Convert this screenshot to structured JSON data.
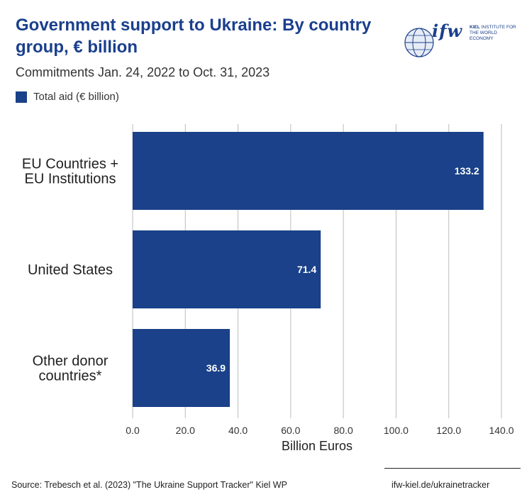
{
  "header": {
    "title": "Government support to Ukraine: By country group, € billion",
    "subtitle": "Commitments Jan. 24, 2022 to Oct. 31, 2023"
  },
  "logo": {
    "wordmark": "ifw",
    "tagline_bold": "KIEL",
    "tagline": "INSTITUTE FOR THE WORLD ECONOMY"
  },
  "colors": {
    "bar": "#1a4189",
    "grid": "#bdbdbd",
    "title": "#1a3f8c",
    "bar_label": "#ffffff"
  },
  "chart_data": {
    "type": "bar",
    "orientation": "horizontal",
    "categories": [
      [
        "EU Countries +",
        "EU Institutions"
      ],
      [
        "United States"
      ],
      [
        "Other donor",
        "countries*"
      ]
    ],
    "series": [
      {
        "name": "Total aid (€ billion)",
        "values": [
          133.2,
          71.4,
          36.9
        ],
        "value_labels": [
          "133.2",
          "71.4",
          "36.9"
        ]
      }
    ],
    "xlabel": "Billion Euros",
    "xlim": [
      0,
      140
    ],
    "xticks": [
      0,
      20,
      40,
      60,
      80,
      100,
      120,
      140
    ],
    "xtick_labels": [
      "0.0",
      "20.0",
      "40.0",
      "60.0",
      "80.0",
      "100.0",
      "120.0",
      "140.0"
    ],
    "grid": "vertical",
    "legend": "top-left"
  },
  "footer": {
    "source": "Source: Trebesch et al. (2023) \"The Ukraine Support Tracker\" Kiel WP",
    "url": "ifw-kiel.de/ukrainetracker"
  }
}
